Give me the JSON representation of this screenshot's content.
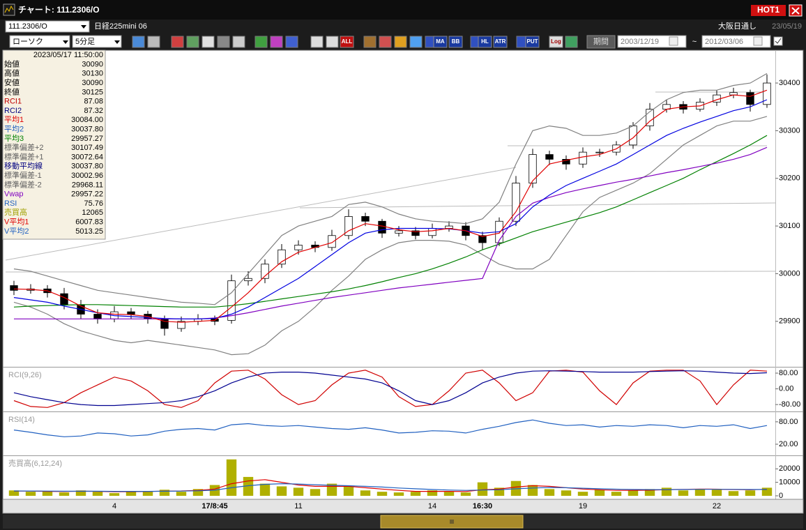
{
  "window": {
    "title": "チャート: 111.2306/O",
    "badge": "HOT1"
  },
  "symbol_bar": {
    "code": "111.2306/O",
    "name": "日経225mini 06",
    "session": "大阪日通し",
    "date": "23/05/19"
  },
  "toolbar": {
    "chart_type": "ローソク",
    "interval": "5分足",
    "icons": [
      "ALL",
      "MA",
      "BB",
      "HL",
      "ATR",
      "PUT",
      "Log"
    ],
    "period_button": "期間",
    "from": "2003/12/19",
    "separator": "~",
    "to": "2012/03/06"
  },
  "info_panel": {
    "datetime": "2023/05/17 11:50:00",
    "rows": [
      {
        "label": "始値",
        "value": "30090",
        "color": "#000000"
      },
      {
        "label": "高値",
        "value": "30130",
        "color": "#000000"
      },
      {
        "label": "安値",
        "value": "30090",
        "color": "#000000"
      },
      {
        "label": "終値",
        "value": "30125",
        "color": "#000000"
      },
      {
        "label": "RCI1",
        "value": "87.08",
        "color": "#c00000"
      },
      {
        "label": "RCI2",
        "value": "87.32",
        "color": "#000080"
      },
      {
        "label": "平均1",
        "value": "30084.00",
        "color": "#e00000"
      },
      {
        "label": "平均2",
        "value": "30037.80",
        "color": "#2060c0"
      },
      {
        "label": "平均3",
        "value": "29957.27",
        "color": "#008000"
      },
      {
        "label": "標準偏差+2",
        "value": "30107.49",
        "color": "#606060"
      },
      {
        "label": "標準偏差+1",
        "value": "30072.64",
        "color": "#606060"
      },
      {
        "label": "移動平均線",
        "value": "30037.80",
        "color": "#000080"
      },
      {
        "label": "標準偏差-1",
        "value": "30002.96",
        "color": "#606060"
      },
      {
        "label": "標準偏差-2",
        "value": "29968.11",
        "color": "#606060"
      },
      {
        "label": "Vwap",
        "value": "29957.22",
        "color": "#8000c0"
      },
      {
        "label": "RSI",
        "value": "75.76",
        "color": "#2060c0"
      },
      {
        "label": "売買高",
        "value": "12065",
        "color": "#a0a000"
      },
      {
        "label": "V平均1",
        "value": "6007.83",
        "color": "#e00000"
      },
      {
        "label": "V平均2",
        "value": "5013.25",
        "color": "#2060c0"
      }
    ]
  },
  "chart_data": [
    {
      "type": "candlestick",
      "up_color": "#ffffff",
      "down_color": "#000000",
      "categories": [
        null,
        null,
        null,
        null,
        null,
        null,
        "4",
        null,
        null,
        null,
        null,
        null,
        "17/8:45",
        null,
        null,
        null,
        null,
        "11",
        null,
        null,
        null,
        null,
        null,
        null,
        null,
        "14",
        null,
        null,
        "16:30",
        null,
        null,
        null,
        null,
        null,
        "19",
        null,
        null,
        null,
        null,
        null,
        null,
        null,
        "22",
        null,
        null,
        null
      ],
      "open": [
        29975,
        29965,
        29968,
        29958,
        29935,
        29915,
        29905,
        29920,
        29915,
        29905,
        29885,
        29900,
        29905,
        29902,
        29985,
        29990,
        30020,
        30050,
        30060,
        30055,
        30080,
        30120,
        30110,
        30085,
        30090,
        30080,
        30095,
        30100,
        30080,
        30065,
        30110,
        30190,
        30250,
        30240,
        30230,
        30255,
        30255,
        30270,
        30310,
        30345,
        30355,
        30345,
        30360,
        30375,
        30380,
        30355
      ],
      "high": [
        29985,
        29978,
        29976,
        29970,
        29945,
        29925,
        29932,
        29928,
        29922,
        29912,
        29910,
        29915,
        29912,
        29998,
        30005,
        30030,
        30062,
        30070,
        30068,
        30092,
        30135,
        30128,
        30115,
        30100,
        30098,
        30105,
        30110,
        30108,
        30088,
        30118,
        30205,
        30262,
        30258,
        30248,
        30265,
        30262,
        30278,
        30318,
        30358,
        30365,
        30362,
        30368,
        30385,
        30390,
        30386,
        30418
      ],
      "low": [
        29955,
        29958,
        29950,
        29925,
        29905,
        29895,
        29898,
        29905,
        29895,
        29870,
        29878,
        29892,
        29892,
        29895,
        29975,
        29980,
        30012,
        30040,
        30045,
        30048,
        30072,
        30100,
        30075,
        30078,
        30072,
        30074,
        30088,
        30070,
        30050,
        30058,
        30100,
        30180,
        30228,
        30218,
        30222,
        30245,
        30248,
        30262,
        30300,
        30338,
        30336,
        30340,
        30352,
        30368,
        30340,
        30348
      ],
      "close": [
        29965,
        29968,
        29960,
        29935,
        29915,
        29905,
        29920,
        29915,
        29905,
        29885,
        29900,
        29905,
        29900,
        29985,
        29990,
        30020,
        30050,
        30060,
        30055,
        30080,
        30120,
        30110,
        30085,
        30090,
        30080,
        30095,
        30100,
        30080,
        30065,
        30110,
        30190,
        30250,
        30240,
        30230,
        30255,
        30255,
        30270,
        30310,
        30345,
        30355,
        30345,
        30360,
        30375,
        30380,
        30355,
        30400
      ],
      "series": [
        {
          "name": "標準偏差+2",
          "color": "#808080",
          "values": [
            30010,
            30005,
            29995,
            29985,
            29975,
            29965,
            29960,
            29955,
            29950,
            29945,
            29940,
            29938,
            29935,
            29960,
            30000,
            30040,
            30080,
            30100,
            30110,
            30120,
            30145,
            30150,
            30140,
            30125,
            30115,
            30110,
            30108,
            30105,
            30115,
            30150,
            30230,
            30300,
            30310,
            30305,
            30290,
            30290,
            30295,
            30310,
            30340,
            30365,
            30380,
            30385,
            30385,
            30395,
            30400,
            30420
          ]
        },
        {
          "name": "標準偏差-2",
          "color": "#808080",
          "values": [
            29940,
            29930,
            29915,
            29895,
            29880,
            29870,
            29860,
            29855,
            29860,
            29855,
            29850,
            29845,
            29840,
            29830,
            29832,
            29850,
            29880,
            29900,
            29930,
            29965,
            29995,
            30030,
            30050,
            30065,
            30070,
            30070,
            30068,
            30060,
            30040,
            30020,
            30010,
            30010,
            30030,
            30080,
            30130,
            30160,
            30175,
            30190,
            30210,
            30240,
            30270,
            30290,
            30310,
            30320,
            30320,
            30330
          ]
        },
        {
          "name": "平均3",
          "color": "#008000",
          "values": [
            29930,
            29932,
            29933,
            29934,
            29935,
            29935,
            29934,
            29933,
            29932,
            29931,
            29930,
            29930,
            29930,
            29933,
            29937,
            29942,
            29947,
            29952,
            29957,
            29962,
            29968,
            29975,
            29983,
            29992,
            30000,
            30010,
            30022,
            30035,
            30050,
            30062,
            30075,
            30088,
            30098,
            30108,
            30118,
            30128,
            30140,
            30155,
            30170,
            30185,
            30200,
            30218,
            30235,
            30252,
            30270,
            30290
          ]
        },
        {
          "name": "Vwap",
          "color": "#8000c0",
          "values": [
            29905,
            29905,
            29905,
            29905,
            29905,
            29905,
            29905,
            29905,
            29905,
            29905,
            29905,
            29905,
            29907,
            29912,
            29918,
            29925,
            29932,
            29938,
            29944,
            29950,
            29955,
            29960,
            29965,
            29970,
            29974,
            29978,
            29982,
            29986,
            29990,
            30070,
            30120,
            30148,
            30160,
            30170,
            30178,
            30185,
            30192,
            30198,
            30205,
            30212,
            30218,
            30225,
            30232,
            30240,
            30250,
            30265
          ]
        },
        {
          "name": "平均2",
          "color": "#0000e0",
          "values": [
            29950,
            29945,
            29940,
            29932,
            29925,
            29918,
            29912,
            29910,
            29908,
            29906,
            29905,
            29905,
            29906,
            29915,
            29930,
            29950,
            29970,
            29990,
            30015,
            30040,
            30065,
            30085,
            30092,
            30095,
            30095,
            30095,
            30094,
            30090,
            30085,
            30088,
            30105,
            30140,
            30165,
            30185,
            30200,
            30215,
            30230,
            30250,
            30270,
            30290,
            30305,
            30318,
            30330,
            30342,
            30350,
            30365
          ]
        },
        {
          "name": "平均1",
          "color": "#e00000",
          "values": [
            29968,
            29967,
            29964,
            29950,
            29932,
            29918,
            29915,
            29914,
            29910,
            29900,
            29898,
            29900,
            29902,
            29930,
            29960,
            29995,
            30025,
            30045,
            30055,
            30065,
            30090,
            30105,
            30100,
            30092,
            30088,
            30090,
            30095,
            30090,
            30078,
            30085,
            30130,
            30195,
            30230,
            30238,
            30245,
            30250,
            30262,
            30285,
            30320,
            30345,
            30350,
            30352,
            30365,
            30375,
            30372,
            30385
          ]
        }
      ],
      "ylim": [
        29806,
        30463
      ],
      "yticks": [
        30400,
        30300,
        30200,
        30100,
        30000,
        29900
      ]
    },
    {
      "type": "line",
      "title": "RCI(9,26)",
      "series": [
        {
          "name": "RCI1",
          "color": "#d00000",
          "values": [
            -60,
            -90,
            -95,
            -70,
            -20,
            20,
            60,
            40,
            -10,
            -80,
            -95,
            -60,
            30,
            90,
            95,
            50,
            -30,
            -80,
            -60,
            20,
            80,
            95,
            60,
            -40,
            -90,
            -80,
            -10,
            80,
            95,
            30,
            -60,
            -20,
            90,
            95,
            85,
            -10,
            -80,
            30,
            90,
            95,
            95,
            40,
            -80,
            20,
            95,
            90
          ]
        },
        {
          "name": "RCI2",
          "color": "#000090",
          "values": [
            -20,
            -40,
            -55,
            -70,
            -80,
            -85,
            -85,
            -80,
            -75,
            -70,
            -60,
            -40,
            -10,
            30,
            60,
            80,
            85,
            85,
            80,
            70,
            60,
            50,
            30,
            -10,
            -60,
            -80,
            -60,
            -20,
            30,
            60,
            80,
            90,
            92,
            90,
            88,
            85,
            85,
            85,
            88,
            90,
            92,
            90,
            85,
            80,
            78,
            82
          ]
        }
      ],
      "ylim": [
        -108,
        105
      ],
      "yticks": [
        {
          "value": 80,
          "label": "80.00"
        },
        {
          "value": 0,
          "label": "0.00"
        },
        {
          "value": -80,
          "label": "-80.00"
        }
      ]
    },
    {
      "type": "line",
      "title": "RSI(14)",
      "series": [
        {
          "name": "RSI",
          "color": "#2060c0",
          "values": [
            58,
            52,
            45,
            40,
            42,
            50,
            48,
            42,
            45,
            55,
            60,
            62,
            58,
            72,
            75,
            70,
            68,
            70,
            66,
            62,
            60,
            64,
            58,
            50,
            52,
            56,
            55,
            50,
            60,
            68,
            78,
            85,
            76,
            70,
            72,
            66,
            70,
            68,
            72,
            70,
            64,
            70,
            68,
            72,
            62,
            70
          ]
        }
      ],
      "ylim": [
        -8,
        104
      ],
      "yticks": [
        {
          "value": 80,
          "label": "80.00"
        },
        {
          "value": 20,
          "label": "20.00"
        }
      ]
    },
    {
      "type": "bar",
      "title": "売買高(6,12,24)",
      "color": "#b0b000",
      "values": [
        4000,
        3000,
        3500,
        2500,
        4000,
        3000,
        2000,
        3500,
        3000,
        4500,
        3000,
        5000,
        8000,
        27000,
        14000,
        9000,
        7000,
        6000,
        5000,
        9000,
        7000,
        4000,
        3000,
        2500,
        3000,
        4000,
        3000,
        2500,
        10000,
        6000,
        11000,
        8000,
        5000,
        4000,
        3000,
        4500,
        3000,
        4000,
        5000,
        6000,
        4000,
        5000,
        4500,
        3500,
        4000,
        6000
      ],
      "series": [
        {
          "name": "V平均1",
          "color": "#e00000",
          "values": [
            3500,
            3500,
            3300,
            3200,
            3400,
            3300,
            3000,
            3100,
            3200,
            3500,
            3600,
            4000,
            5000,
            9000,
            11000,
            12000,
            10000,
            8000,
            7000,
            7000,
            7000,
            6000,
            5000,
            4000,
            3300,
            3300,
            3300,
            3200,
            4500,
            5000,
            6500,
            7500,
            7000,
            6000,
            5000,
            4500,
            4000,
            4000,
            4200,
            4600,
            4800,
            5000,
            4900,
            4700,
            4500,
            4800
          ]
        },
        {
          "name": "V平均2",
          "color": "#2060c0",
          "values": [
            3600,
            3550,
            3500,
            3400,
            3400,
            3400,
            3300,
            3300,
            3300,
            3400,
            3500,
            3700,
            4200,
            6000,
            7500,
            8500,
            9000,
            8700,
            8200,
            7800,
            7500,
            7000,
            6500,
            5800,
            5200,
            4700,
            4300,
            4000,
            4300,
            4500,
            5200,
            5800,
            6200,
            6000,
            5600,
            5200,
            4900,
            4700,
            4600,
            4600,
            4700,
            4800,
            4800,
            4800,
            4700,
            4700
          ]
        }
      ],
      "ylim": [
        -1050,
        28950
      ],
      "yticks": [
        20000,
        10000,
        0
      ]
    }
  ]
}
